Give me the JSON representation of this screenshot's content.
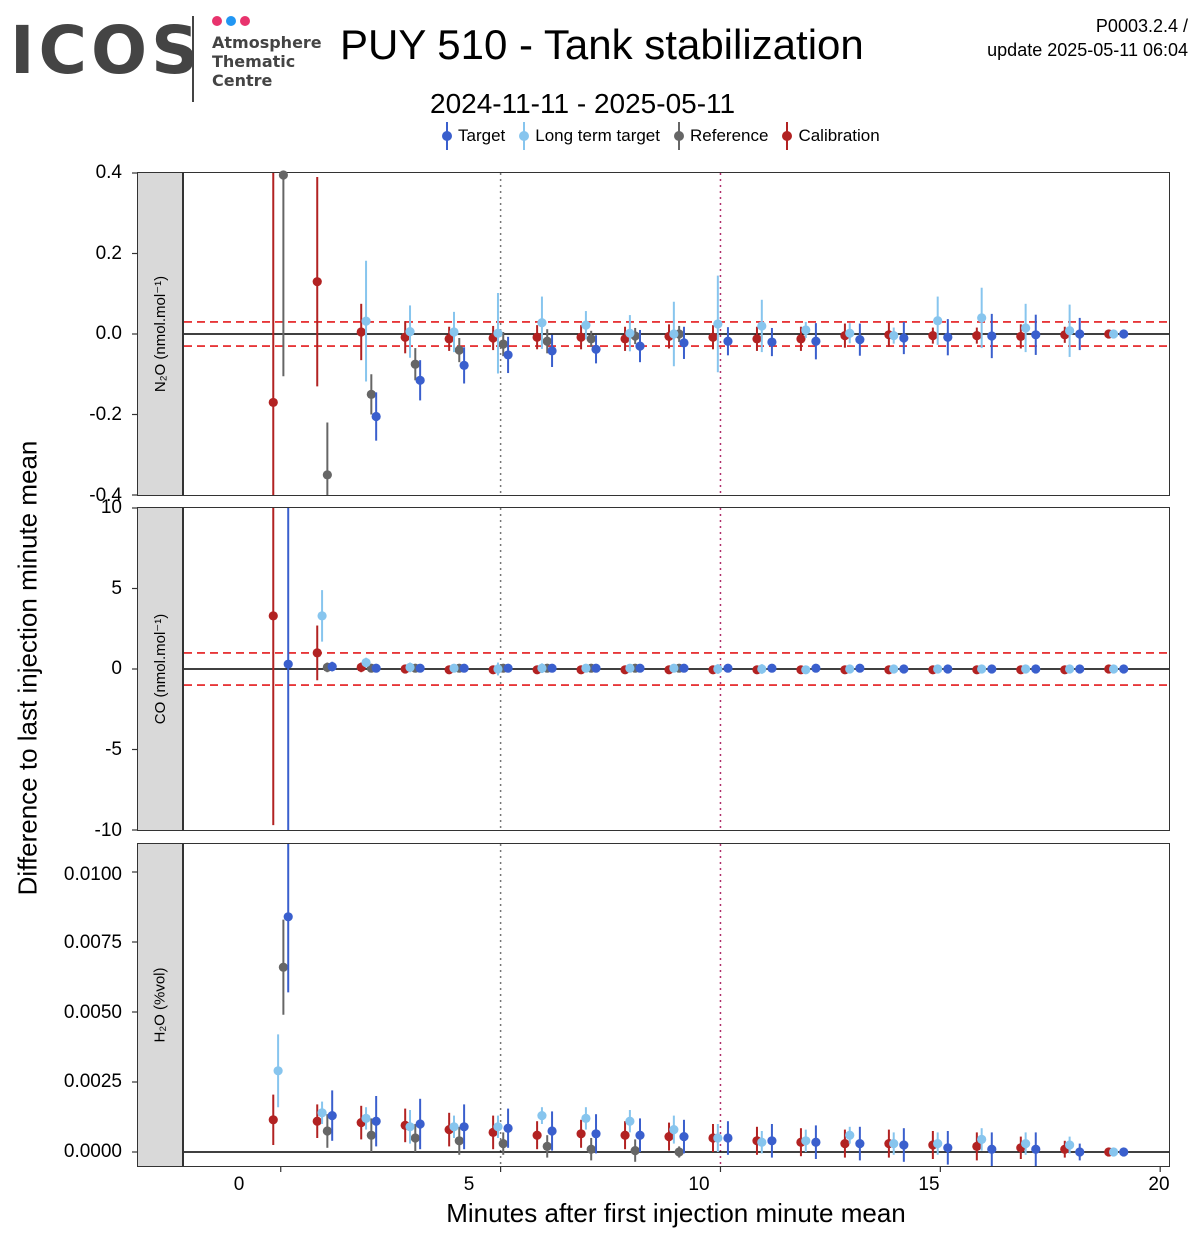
{
  "header": {
    "logo_text": "ICOS",
    "logo_lines": [
      "Atmosphere",
      "Thematic",
      "Centre"
    ],
    "logo_dot_colors": [
      "#e8336d",
      "#2196f3",
      "#e8336d"
    ],
    "title": "PUY 510 - Tank stabilization",
    "subtitle": "2024-11-11 - 2025-05-11",
    "version": "P0003.2.4 /",
    "update": "update  2025-05-11 06:04"
  },
  "legend": [
    {
      "name": "Target",
      "color": "#3a5fcd"
    },
    {
      "name": "Long term target",
      "color": "#87c5ee"
    },
    {
      "name": "Reference",
      "color": "#666666"
    },
    {
      "name": "Calibration",
      "color": "#b22222"
    }
  ],
  "chart_data": {
    "type": "scatter",
    "subtype": "point-range with faceted panels",
    "xlabel": "Minutes after first injection minute mean",
    "ylabel": "Difference to last injection minute mean",
    "xlim": [
      -2.2,
      20.2
    ],
    "x_ticks": [
      "0",
      "5",
      "10",
      "15",
      "20"
    ],
    "x_tick_values": [
      0,
      5,
      10,
      15,
      20
    ],
    "vlines": [
      {
        "x": 5,
        "style": "dotted",
        "color": "#777777"
      },
      {
        "x": 10,
        "style": "dotted",
        "color": "#b0306b"
      }
    ],
    "series_names": [
      "Calibration",
      "Reference",
      "Long term target",
      "Target"
    ],
    "series_colors": [
      "#b22222",
      "#666666",
      "#87c5ee",
      "#3a5fcd"
    ],
    "series_offsets": [
      -0.17,
      0.06,
      -0.06,
      0.17
    ],
    "minutes": [
      0,
      1,
      2,
      3,
      4,
      5,
      6,
      7,
      8,
      9,
      10,
      11,
      12,
      13,
      14,
      15,
      16,
      17,
      18,
      19
    ],
    "panels": [
      {
        "strip": "N₂O (nmol.mol⁻¹)",
        "ylim": [
          -0.4,
          0.4
        ],
        "y_ticks": [
          "0.4",
          "0.2",
          "0.0",
          "-0.2",
          "-0.4"
        ],
        "y_tick_values": [
          0.4,
          0.2,
          0.0,
          -0.2,
          -0.4
        ],
        "hline": 0,
        "threshold": 0.03,
        "series": [
          {
            "name": "Calibration",
            "values": [
              -0.17,
              0.13,
              0.005,
              -0.008,
              -0.012,
              -0.01,
              -0.008,
              -0.008,
              -0.012,
              -0.006,
              -0.008,
              -0.012,
              -0.012,
              -0.004,
              -0.002,
              -0.004,
              -0.004,
              -0.006,
              -0.002,
              0
            ],
            "err": [
              0.8,
              0.26,
              0.07,
              0.04,
              0.03,
              0.03,
              0.03,
              0.03,
              0.03,
              0.03,
              0.03,
              0.03,
              0.03,
              0.03,
              0.03,
              0.02,
              0.02,
              0.03,
              0.02,
              0
            ]
          },
          {
            "name": "Reference",
            "values": [
              0.395,
              -0.35,
              -0.15,
              -0.075,
              -0.04,
              -0.025,
              -0.018,
              -0.012,
              -0.005,
              0,
              null,
              null,
              null,
              null,
              null,
              null,
              null,
              null,
              null,
              null
            ],
            "err": [
              0.5,
              0.13,
              0.05,
              0.04,
              0.03,
              0.03,
              0.03,
              0.02,
              0.02,
              0.02,
              null,
              null,
              null,
              null,
              null,
              null,
              null,
              null,
              null,
              null
            ]
          },
          {
            "name": "Long term target",
            "values": [
              null,
              null,
              0.032,
              0.006,
              0.005,
              0.002,
              0.028,
              0.022,
              0.002,
              0,
              0.025,
              0.02,
              0.01,
              0.002,
              -0.004,
              0.033,
              0.04,
              0.015,
              0.008,
              0
            ],
            "err": [
              null,
              null,
              0.15,
              0.065,
              0.05,
              0.1,
              0.065,
              0.035,
              0.045,
              0.08,
              0.12,
              0.065,
              0.02,
              0.025,
              0.02,
              0.06,
              0.075,
              0.06,
              0.065,
              0
            ]
          },
          {
            "name": "Target",
            "values": [
              null,
              null,
              -0.205,
              -0.115,
              -0.078,
              -0.052,
              -0.042,
              -0.038,
              -0.03,
              -0.022,
              -0.018,
              -0.02,
              -0.018,
              -0.014,
              -0.01,
              -0.008,
              -0.005,
              -0.002,
              0,
              0
            ],
            "err": [
              null,
              null,
              0.06,
              0.05,
              0.045,
              0.045,
              0.04,
              0.035,
              0.04,
              0.04,
              0.035,
              0.035,
              0.045,
              0.04,
              0.04,
              0.045,
              0.055,
              0.05,
              0.04,
              0
            ]
          }
        ]
      },
      {
        "strip": "CO (nmol.mol⁻¹)",
        "ylim": [
          -10,
          10
        ],
        "y_ticks": [
          "10",
          "5",
          "0",
          "-5",
          "-10"
        ],
        "y_tick_values": [
          10,
          5,
          0,
          -5,
          -10
        ],
        "hline": 0,
        "threshold": 1,
        "series": [
          {
            "name": "Calibration",
            "values": [
              3.3,
              1,
              0.1,
              0,
              -0.05,
              -0.05,
              -0.05,
              -0.05,
              -0.05,
              -0.05,
              -0.05,
              -0.05,
              -0.05,
              -0.05,
              -0.05,
              -0.05,
              -0.05,
              -0.05,
              -0.05,
              0
            ],
            "err": [
              13,
              1.7,
              0.3,
              0.2,
              0.2,
              0.15,
              0.15,
              0.15,
              0.15,
              0.15,
              0.15,
              0.15,
              0.15,
              0.15,
              0.15,
              0.15,
              0.15,
              0.15,
              0.15,
              0
            ]
          },
          {
            "name": "Reference",
            "values": [
              null,
              0.1,
              0.05,
              0.05,
              0.05,
              0.05,
              0.05,
              0.05,
              0.05,
              0.05,
              null,
              null,
              null,
              null,
              null,
              null,
              null,
              null,
              null,
              null
            ],
            "err": [
              null,
              0.3,
              0.2,
              0.2,
              0.2,
              0.2,
              0.2,
              0.2,
              0.2,
              0.2,
              null,
              null,
              null,
              null,
              null,
              null,
              null,
              null,
              null,
              null
            ]
          },
          {
            "name": "Long term target",
            "values": [
              null,
              3.3,
              0.4,
              0.1,
              0.05,
              0,
              0.05,
              0.05,
              0.05,
              0.05,
              0,
              0,
              -0.05,
              0,
              0,
              0,
              0,
              0,
              0,
              0
            ],
            "err": [
              null,
              1.6,
              0.3,
              0.3,
              0.25,
              0.4,
              0.3,
              0.2,
              0.2,
              0.25,
              0.3,
              0.3,
              0.25,
              0.2,
              0.2,
              0.2,
              0.25,
              0.2,
              0.2,
              0
            ]
          },
          {
            "name": "Target",
            "values": [
              0.3,
              0.15,
              0.05,
              0.05,
              0.05,
              0.05,
              0.05,
              0.05,
              0.05,
              0.05,
              0.05,
              0.05,
              0.05,
              0.05,
              0,
              0,
              0,
              0,
              0,
              0
            ],
            "err": [
              13,
              0.3,
              0.2,
              0.2,
              0.2,
              0.2,
              0.2,
              0.2,
              0.2,
              0.2,
              0.2,
              0.2,
              0.2,
              0.2,
              0.2,
              0.2,
              0.2,
              0.2,
              0.2,
              0
            ]
          }
        ]
      },
      {
        "strip": "H₂O (%vol)",
        "ylim": [
          -0.0005,
          0.011
        ],
        "y_ticks": [
          "0.0100",
          "0.0075",
          "0.0050",
          "0.0025",
          "0.0000"
        ],
        "y_tick_values": [
          0.01,
          0.0075,
          0.005,
          0.0025,
          0.0
        ],
        "hline": 0,
        "threshold": null,
        "series": [
          {
            "name": "Calibration",
            "values": [
              0.00115,
              0.0011,
              0.00105,
              0.00095,
              0.0008,
              0.0007,
              0.0006,
              0.00065,
              0.0006,
              0.00055,
              0.0005,
              0.0004,
              0.00035,
              0.0003,
              0.0003,
              0.00025,
              0.0002,
              0.00015,
              0.0001,
              0
            ],
            "err": [
              0.0009,
              0.0006,
              0.0006,
              0.0006,
              0.0006,
              0.0006,
              0.0005,
              0.0005,
              0.0005,
              0.0005,
              0.0005,
              0.0005,
              0.0005,
              0.0005,
              0.0005,
              0.0005,
              0.0005,
              0.0004,
              0.0003,
              0
            ]
          },
          {
            "name": "Reference",
            "values": [
              0.0066,
              0.00075,
              0.0006,
              0.0005,
              0.0004,
              0.0003,
              0.0002,
              0.0001,
              5e-05,
              0,
              null,
              null,
              null,
              null,
              null,
              null,
              null,
              null,
              null,
              null
            ],
            "err": [
              0.0017,
              0.0006,
              0.0006,
              0.0005,
              0.0005,
              0.0004,
              0.0004,
              0.0004,
              0.0004,
              0.0002,
              null,
              null,
              null,
              null,
              null,
              null,
              null,
              null,
              null,
              null
            ]
          },
          {
            "name": "Long term target",
            "values": [
              0.0029,
              0.0014,
              0.0012,
              0.0009,
              0.0009,
              0.0009,
              0.0013,
              0.0012,
              0.0011,
              0.0008,
              0.0005,
              0.00035,
              0.0004,
              0.0006,
              0.0003,
              0.0003,
              0.00045,
              0.0003,
              0.00025,
              0
            ],
            "err": [
              0.0013,
              0.0004,
              0.0004,
              0.0006,
              0.0004,
              0.0004,
              0.0003,
              0.0004,
              0.0004,
              0.0005,
              0.0005,
              0.0004,
              0.0004,
              0.0003,
              0.0004,
              0.0004,
              0.0004,
              0.0004,
              0.0003,
              0
            ]
          },
          {
            "name": "Target",
            "values": [
              0.0084,
              0.0013,
              0.0011,
              0.001,
              0.0009,
              0.00085,
              0.00075,
              0.00065,
              0.0006,
              0.00055,
              0.0005,
              0.0004,
              0.00035,
              0.0003,
              0.00025,
              0.00015,
              0.0001,
              0.0001,
              0,
              0
            ],
            "err": [
              0.0027,
              0.0009,
              0.0009,
              0.0009,
              0.0008,
              0.0007,
              0.0007,
              0.0007,
              0.0006,
              0.0006,
              0.0006,
              0.0006,
              0.0006,
              0.0006,
              0.0006,
              0.0006,
              0.0006,
              0.0006,
              0.0003,
              0
            ]
          }
        ]
      }
    ]
  }
}
